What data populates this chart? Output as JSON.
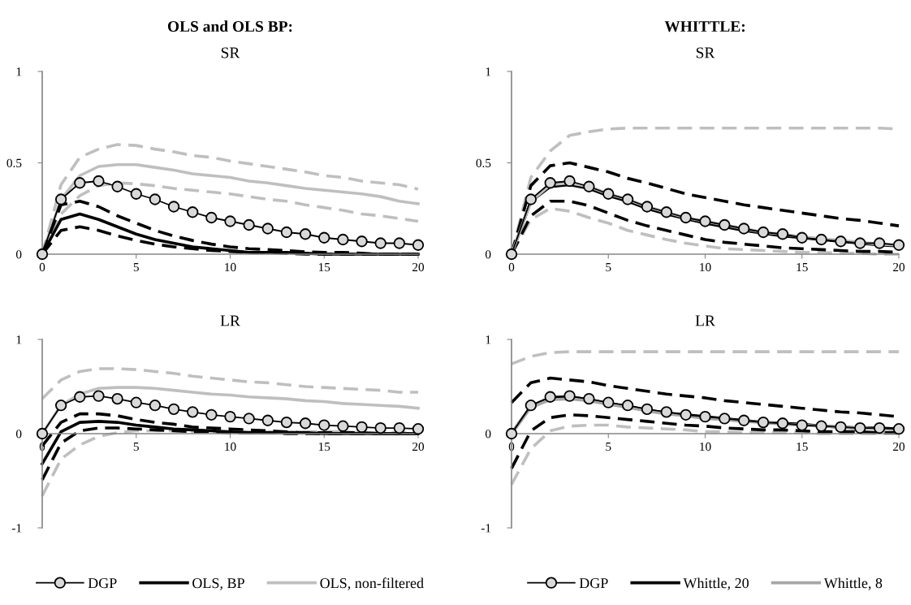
{
  "chart_data": [
    {
      "type": "line",
      "title": "OLS and OLS BP:",
      "subtitle": "SR",
      "x": [
        0,
        1,
        2,
        3,
        4,
        5,
        6,
        7,
        8,
        9,
        10,
        11,
        12,
        13,
        14,
        15,
        16,
        17,
        18,
        19,
        20
      ],
      "xlim": [
        0,
        20
      ],
      "xticks": [
        0,
        5,
        10,
        15,
        20
      ],
      "ylim": [
        0,
        1
      ],
      "yticks": [
        0,
        0.5,
        1
      ],
      "grid": false,
      "legend": false,
      "series": [
        {
          "color": "#bfbfbf",
          "line_style": "dashed",
          "values": [
            0,
            0.22,
            0.32,
            0.375,
            0.39,
            0.385,
            0.375,
            0.36,
            0.35,
            0.34,
            0.33,
            0.315,
            0.3,
            0.29,
            0.27,
            0.255,
            0.24,
            0.22,
            0.21,
            0.195,
            0.18
          ]
        },
        {
          "color": "#bfbfbf",
          "line_style": "dashed",
          "values": [
            0,
            0.38,
            0.53,
            0.575,
            0.6,
            0.595,
            0.575,
            0.56,
            0.54,
            0.53,
            0.51,
            0.495,
            0.48,
            0.465,
            0.45,
            0.43,
            0.42,
            0.4,
            0.39,
            0.38,
            0.356
          ]
        },
        {
          "color": "#bfbfbf",
          "line_style": "solid",
          "values": [
            0,
            0.3,
            0.43,
            0.48,
            0.49,
            0.49,
            0.475,
            0.46,
            0.44,
            0.43,
            0.42,
            0.4,
            0.39,
            0.375,
            0.36,
            0.35,
            0.34,
            0.33,
            0.315,
            0.29,
            0.276
          ]
        },
        {
          "color": "#000000",
          "line_style": "dashed",
          "values": [
            0,
            0.13,
            0.15,
            0.13,
            0.1,
            0.075,
            0.055,
            0.04,
            0.03,
            0.02,
            0.015,
            0.01,
            0.01,
            0.005,
            0,
            0,
            0,
            0,
            0,
            0,
            0
          ]
        },
        {
          "color": "#000000",
          "line_style": "dashed",
          "values": [
            0,
            0.27,
            0.29,
            0.26,
            0.21,
            0.17,
            0.13,
            0.1,
            0.075,
            0.055,
            0.04,
            0.03,
            0.025,
            0.02,
            0.013,
            0.01,
            0.01,
            0.005,
            0,
            0,
            0
          ]
        },
        {
          "color": "#000000",
          "line_style": "solid",
          "values": [
            0,
            0.19,
            0.22,
            0.19,
            0.15,
            0.11,
            0.08,
            0.06,
            0.04,
            0.03,
            0.02,
            0.01,
            0.01,
            0.01,
            0.005,
            0,
            0,
            0,
            0,
            0,
            0
          ]
        },
        {
          "color": "#000000",
          "line_style": "solid",
          "marker": "circle",
          "values": [
            0,
            0.3,
            0.39,
            0.4,
            0.37,
            0.33,
            0.3,
            0.26,
            0.23,
            0.2,
            0.18,
            0.16,
            0.14,
            0.12,
            0.11,
            0.09,
            0.08,
            0.07,
            0.06,
            0.06,
            0.05
          ]
        }
      ]
    },
    {
      "type": "line",
      "title": "WHITTLE:",
      "subtitle": "SR",
      "x": [
        0,
        1,
        2,
        3,
        4,
        5,
        6,
        7,
        8,
        9,
        10,
        11,
        12,
        13,
        14,
        15,
        16,
        17,
        18,
        19,
        20
      ],
      "xlim": [
        0,
        20
      ],
      "xticks": [
        0,
        5,
        10,
        15,
        20
      ],
      "ylim": [
        0,
        1
      ],
      "yticks": [
        0,
        0.5,
        1
      ],
      "grid": false,
      "legend": false,
      "series": [
        {
          "color": "#bfbfbf",
          "line_style": "dashed",
          "values": [
            0,
            0.19,
            0.25,
            0.235,
            0.2,
            0.17,
            0.13,
            0.105,
            0.08,
            0.06,
            0.045,
            0.03,
            0.025,
            0.02,
            0.015,
            0.01,
            0.01,
            0.005,
            0.005,
            0,
            0
          ]
        },
        {
          "color": "#bfbfbf",
          "line_style": "dashed",
          "values": [
            0,
            0.42,
            0.565,
            0.65,
            0.67,
            0.685,
            0.69,
            0.69,
            0.69,
            0.69,
            0.69,
            0.69,
            0.69,
            0.69,
            0.69,
            0.69,
            0.69,
            0.69,
            0.69,
            0.69,
            0.685
          ]
        },
        {
          "color": "#000000",
          "line_style": "dashed",
          "values": [
            0,
            0.21,
            0.29,
            0.29,
            0.265,
            0.225,
            0.185,
            0.155,
            0.13,
            0.105,
            0.08,
            0.065,
            0.055,
            0.045,
            0.035,
            0.03,
            0.025,
            0.02,
            0.015,
            0.015,
            0.01
          ]
        },
        {
          "color": "#000000",
          "line_style": "dashed",
          "values": [
            0,
            0.375,
            0.484,
            0.5,
            0.475,
            0.45,
            0.415,
            0.39,
            0.36,
            0.33,
            0.31,
            0.29,
            0.27,
            0.255,
            0.24,
            0.225,
            0.21,
            0.195,
            0.185,
            0.17,
            0.155
          ]
        },
        {
          "color": "#000000",
          "line_style": "solid",
          "marker": "circle",
          "values": [
            0,
            0.3,
            0.39,
            0.4,
            0.37,
            0.33,
            0.3,
            0.26,
            0.23,
            0.2,
            0.18,
            0.16,
            0.14,
            0.12,
            0.11,
            0.09,
            0.08,
            0.07,
            0.06,
            0.06,
            0.05
          ]
        },
        {
          "color": "#000000",
          "line_style": "solid",
          "values": [
            0,
            0.29,
            0.37,
            0.38,
            0.36,
            0.32,
            0.29,
            0.25,
            0.22,
            0.195,
            0.17,
            0.15,
            0.13,
            0.115,
            0.1,
            0.09,
            0.08,
            0.07,
            0.06,
            0.05,
            0.045
          ]
        },
        {
          "color": "#bfbfbf",
          "line_style": "solid",
          "values": [
            0,
            0.29,
            0.38,
            0.39,
            0.37,
            0.33,
            0.3,
            0.26,
            0.23,
            0.2,
            0.18,
            0.16,
            0.14,
            0.12,
            0.11,
            0.095,
            0.085,
            0.075,
            0.065,
            0.055,
            0.05
          ]
        }
      ]
    },
    {
      "type": "line",
      "title": "LR",
      "x": [
        0,
        1,
        2,
        3,
        4,
        5,
        6,
        7,
        8,
        9,
        10,
        11,
        12,
        13,
        14,
        15,
        16,
        17,
        18,
        19,
        20
      ],
      "xlim": [
        0,
        20
      ],
      "xticks": [
        0,
        5,
        10,
        15,
        20
      ],
      "ylim": [
        -1,
        1
      ],
      "yticks": [
        -1,
        0,
        1
      ],
      "grid": false,
      "legend": "bottom",
      "series": [
        {
          "color": "#bfbfbf",
          "line_style": "dashed",
          "values": [
            -0.66,
            -0.27,
            -0.12,
            -0.03,
            0.01,
            0.03,
            0.03,
            0.03,
            0.02,
            0.02,
            0.02,
            0.02,
            0.02,
            0.02,
            0.02,
            0.02,
            0.02,
            0.01,
            0.01,
            0.01,
            0.01
          ]
        },
        {
          "color": "#bfbfbf",
          "line_style": "dashed",
          "values": [
            0.37,
            0.57,
            0.66,
            0.69,
            0.69,
            0.68,
            0.66,
            0.64,
            0.61,
            0.59,
            0.57,
            0.55,
            0.54,
            0.52,
            0.5,
            0.49,
            0.48,
            0.47,
            0.46,
            0.44,
            0.44
          ]
        },
        {
          "color": "#000000",
          "line_style": "dashed",
          "values": [
            -0.49,
            -0.1,
            0.03,
            0.06,
            0.06,
            0.05,
            0.04,
            0.03,
            0.02,
            0.02,
            0.01,
            0.01,
            0.01,
            0,
            0,
            0,
            0,
            0,
            0,
            0,
            0
          ]
        },
        {
          "color": "#000000",
          "line_style": "dashed",
          "values": [
            -0.13,
            0.12,
            0.21,
            0.21,
            0.19,
            0.15,
            0.12,
            0.1,
            0.07,
            0.06,
            0.05,
            0.04,
            0.03,
            0.02,
            0.01,
            0.01,
            0.01,
            0.01,
            0,
            0,
            0
          ]
        },
        {
          "name": "DGP",
          "color": "#000000",
          "line_style": "solid",
          "marker": "circle",
          "values": [
            0,
            0.3,
            0.39,
            0.4,
            0.37,
            0.33,
            0.3,
            0.26,
            0.23,
            0.2,
            0.18,
            0.16,
            0.14,
            0.12,
            0.11,
            0.09,
            0.08,
            0.07,
            0.06,
            0.06,
            0.05
          ]
        },
        {
          "name": "OLS, BP",
          "color": "#000000",
          "line_style": "solid",
          "values": [
            -0.32,
            0.02,
            0.12,
            0.13,
            0.12,
            0.09,
            0.07,
            0.05,
            0.04,
            0.03,
            0.02,
            0.01,
            0.01,
            0.01,
            0.01,
            0,
            0,
            0,
            0,
            0,
            0
          ]
        },
        {
          "name": "OLS, non-filtered",
          "color": "#bfbfbf",
          "line_style": "solid",
          "values": [
            0,
            0.3,
            0.42,
            0.48,
            0.49,
            0.49,
            0.48,
            0.46,
            0.44,
            0.42,
            0.41,
            0.39,
            0.38,
            0.37,
            0.35,
            0.34,
            0.32,
            0.31,
            0.3,
            0.29,
            0.27
          ]
        }
      ]
    },
    {
      "type": "line",
      "title": "LR",
      "x": [
        0,
        1,
        2,
        3,
        4,
        5,
        6,
        7,
        8,
        9,
        10,
        11,
        12,
        13,
        14,
        15,
        16,
        17,
        18,
        19,
        20
      ],
      "xlim": [
        0,
        20
      ],
      "xticks": [
        0,
        5,
        10,
        15,
        20
      ],
      "ylim": [
        -1,
        1
      ],
      "yticks": [
        -1,
        0,
        1
      ],
      "grid": false,
      "legend": "bottom",
      "series": [
        {
          "color": "#bfbfbf",
          "line_style": "dashed",
          "values": [
            -0.54,
            -0.16,
            0.03,
            0.08,
            0.09,
            0.09,
            0.07,
            0.06,
            0.05,
            0.04,
            0.02,
            0.02,
            0.01,
            0.01,
            0.01,
            0.01,
            0,
            0,
            0,
            0,
            0
          ]
        },
        {
          "color": "#bfbfbf",
          "line_style": "dashed",
          "values": [
            0.74,
            0.82,
            0.86,
            0.87,
            0.87,
            0.87,
            0.87,
            0.87,
            0.87,
            0.87,
            0.87,
            0.87,
            0.87,
            0.87,
            0.87,
            0.87,
            0.87,
            0.87,
            0.87,
            0.87,
            0.87
          ]
        },
        {
          "color": "#000000",
          "line_style": "dashed",
          "values": [
            -0.37,
            0.03,
            0.17,
            0.2,
            0.19,
            0.17,
            0.15,
            0.13,
            0.11,
            0.09,
            0.08,
            0.06,
            0.05,
            0.04,
            0.04,
            0.03,
            0.02,
            0.02,
            0.02,
            0.01,
            0.01
          ]
        },
        {
          "color": "#000000",
          "line_style": "dashed",
          "values": [
            0.33,
            0.54,
            0.59,
            0.57,
            0.55,
            0.51,
            0.48,
            0.45,
            0.42,
            0.4,
            0.38,
            0.35,
            0.33,
            0.31,
            0.29,
            0.27,
            0.25,
            0.23,
            0.22,
            0.2,
            0.18
          ]
        },
        {
          "name": "DGP",
          "color": "#000000",
          "line_style": "solid",
          "marker": "circle",
          "values": [
            0,
            0.3,
            0.39,
            0.4,
            0.37,
            0.33,
            0.3,
            0.26,
            0.23,
            0.2,
            0.18,
            0.16,
            0.14,
            0.12,
            0.11,
            0.09,
            0.08,
            0.07,
            0.06,
            0.06,
            0.05
          ]
        },
        {
          "name": "Whittle, 20",
          "color": "#000000",
          "line_style": "solid",
          "values": [
            0,
            0.29,
            0.38,
            0.39,
            0.36,
            0.32,
            0.29,
            0.25,
            0.22,
            0.2,
            0.18,
            0.16,
            0.14,
            0.12,
            0.11,
            0.1,
            0.08,
            0.07,
            0.06,
            0.06,
            0.05
          ]
        },
        {
          "name": "Whittle, 8",
          "color": "#a6a6a6",
          "line_style": "solid",
          "values": [
            0,
            0.28,
            0.36,
            0.37,
            0.35,
            0.31,
            0.28,
            0.24,
            0.21,
            0.19,
            0.16,
            0.15,
            0.13,
            0.12,
            0.1,
            0.09,
            0.08,
            0.07,
            0.06,
            0.05,
            0.04
          ]
        }
      ]
    }
  ]
}
